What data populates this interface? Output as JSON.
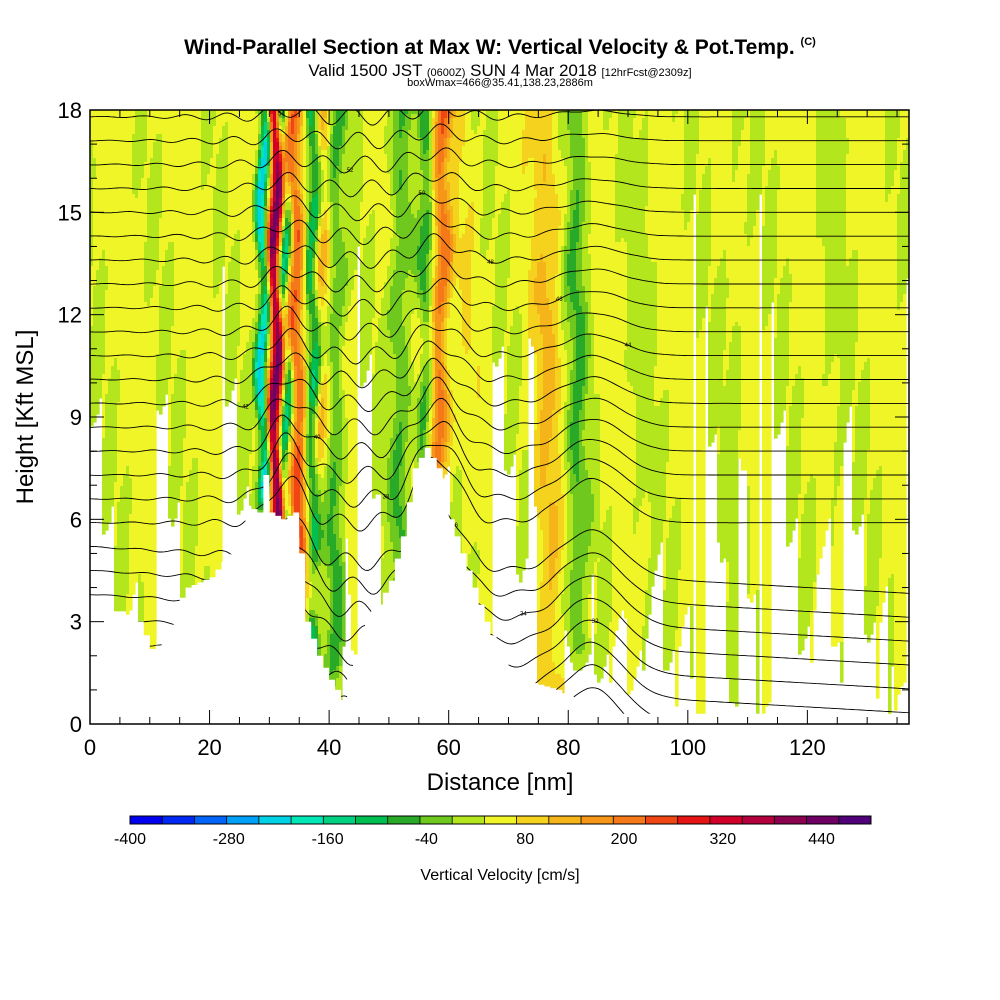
{
  "title": {
    "main": "Wind-Parallel Section at Max W: Vertical Velocity & Pot.Temp.",
    "copyright": "(C)",
    "valid_prefix": "Valid 1500 JST",
    "valid_utc": "(0600Z)",
    "valid_date": "SUN 4 Mar 2018",
    "forecast": "[12hrFcst@2309z]",
    "box": "boxWmax=466@35.41,138.23,2886m"
  },
  "chart_data": {
    "type": "heatmap",
    "xlabel": "Distance [nm]",
    "ylabel": "Height [Kft MSL]",
    "xlim": [
      0,
      137
    ],
    "ylim": [
      0,
      18
    ],
    "x_ticks": [
      0,
      20,
      40,
      60,
      80,
      100,
      120
    ],
    "y_ticks": [
      0,
      3,
      6,
      9,
      12,
      15,
      18
    ],
    "colorbar": {
      "label": "Vertical Velocity [cm/s]",
      "range": [
        -400,
        500
      ],
      "step": 40,
      "tick_values": [
        -400,
        -280,
        -160,
        -40,
        80,
        200,
        320,
        440
      ],
      "colors": [
        "#0000f0",
        "#0028f5",
        "#0064f8",
        "#00a0f8",
        "#00d2e6",
        "#00e6b4",
        "#00d282",
        "#00be50",
        "#28aa28",
        "#6ec81e",
        "#b4e61e",
        "#f0f528",
        "#f5d21e",
        "#f5b419",
        "#f59619",
        "#f57819",
        "#f04614",
        "#e61414",
        "#d20028",
        "#b4003c",
        "#8c0050",
        "#6e0064",
        "#500078"
      ]
    },
    "terrain_profile": [
      [
        0,
        3.3
      ],
      [
        5,
        3.3
      ],
      [
        8,
        3.0
      ],
      [
        10,
        2.2
      ],
      [
        12,
        2.4
      ],
      [
        14,
        3.4
      ],
      [
        16,
        4.0
      ],
      [
        20,
        4.3
      ],
      [
        24,
        5.2
      ],
      [
        26,
        6.4
      ],
      [
        28,
        6.2
      ],
      [
        29,
        7.3
      ],
      [
        30,
        6.2
      ],
      [
        32,
        6.0
      ],
      [
        34,
        6.2
      ],
      [
        35,
        5.0
      ],
      [
        36,
        3.0
      ],
      [
        38,
        2.0
      ],
      [
        40,
        1.3
      ],
      [
        42,
        0.7
      ],
      [
        44,
        2.0
      ],
      [
        46,
        3.1
      ],
      [
        48,
        3.5
      ],
      [
        50,
        4.2
      ],
      [
        52,
        5.5
      ],
      [
        54,
        7.5
      ],
      [
        56,
        8.1
      ],
      [
        57,
        7.8
      ],
      [
        59,
        7.2
      ],
      [
        60,
        6.0
      ],
      [
        62,
        5.0
      ],
      [
        64,
        4.0
      ],
      [
        66,
        3.0
      ],
      [
        68,
        2.2
      ],
      [
        70,
        1.5
      ],
      [
        74,
        1.2
      ],
      [
        78,
        1.0
      ],
      [
        80,
        0.8
      ],
      [
        82,
        0.5
      ],
      [
        84,
        0.3
      ],
      [
        137,
        0.3
      ]
    ],
    "updraft_bands": [
      {
        "x_top": 31.0,
        "x_bottom": 31.0,
        "w": 1.2,
        "peak": 466,
        "min_h": 6.2
      },
      {
        "x_top": 33.8,
        "x_bottom": 36.0,
        "w": 1.5,
        "peak": 260,
        "min_h": 3.5
      },
      {
        "x_top": 39.0,
        "x_bottom": 38.0,
        "w": 1.4,
        "peak": 150,
        "min_h": 6.5
      },
      {
        "x_top": 59.0,
        "x_bottom": 57.5,
        "w": 1.6,
        "peak": 230,
        "min_h": 7.8
      },
      {
        "x_top": 63.0,
        "x_bottom": 63.0,
        "w": 1.4,
        "peak": 70,
        "min_h": 6.0
      },
      {
        "x_top": 76.5,
        "x_bottom": 76.5,
        "w": 2.2,
        "peak": 120,
        "min_h": 1.2
      },
      {
        "x_top": 92.0,
        "x_bottom": 92.0,
        "w": 2.0,
        "peak": 30,
        "min_h": 0.3
      },
      {
        "x_top": 108.0,
        "x_bottom": 108.0,
        "w": 2.0,
        "peak": 30,
        "min_h": 0.3
      },
      {
        "x_top": 124.0,
        "x_bottom": 124.0,
        "w": 2.0,
        "peak": 30,
        "min_h": 0.3
      }
    ],
    "downdraft_bands": [
      {
        "x_top": 29.0,
        "x_bottom": 29.0,
        "w": 1.0,
        "peak": -270,
        "min_h": 7.2
      },
      {
        "x_top": 32.5,
        "x_bottom": 33.0,
        "w": 0.9,
        "peak": -180,
        "min_h": 6.2
      },
      {
        "x_top": 37.5,
        "x_bottom": 37.0,
        "w": 1.2,
        "peak": -160,
        "min_h": 2.5
      },
      {
        "x_top": 41.0,
        "x_bottom": 41.0,
        "w": 1.5,
        "peak": -70,
        "min_h": 2.0
      },
      {
        "x_top": 56.5,
        "x_bottom": 56.0,
        "w": 1.3,
        "peak": -80,
        "min_h": 8.0
      },
      {
        "x_top": 81.5,
        "x_bottom": 81.5,
        "w": 1.8,
        "peak": -60,
        "min_h": 2.5
      },
      {
        "x_top": 52.0,
        "x_bottom": 52.0,
        "w": 1.8,
        "peak": -60,
        "min_h": 4.0
      }
    ],
    "isentrope_count": 26,
    "isentrope_labels": [
      "30",
      "32",
      "34",
      "36",
      "38",
      "40",
      "42",
      "44",
      "46",
      "48",
      "50",
      "52",
      "54"
    ]
  }
}
